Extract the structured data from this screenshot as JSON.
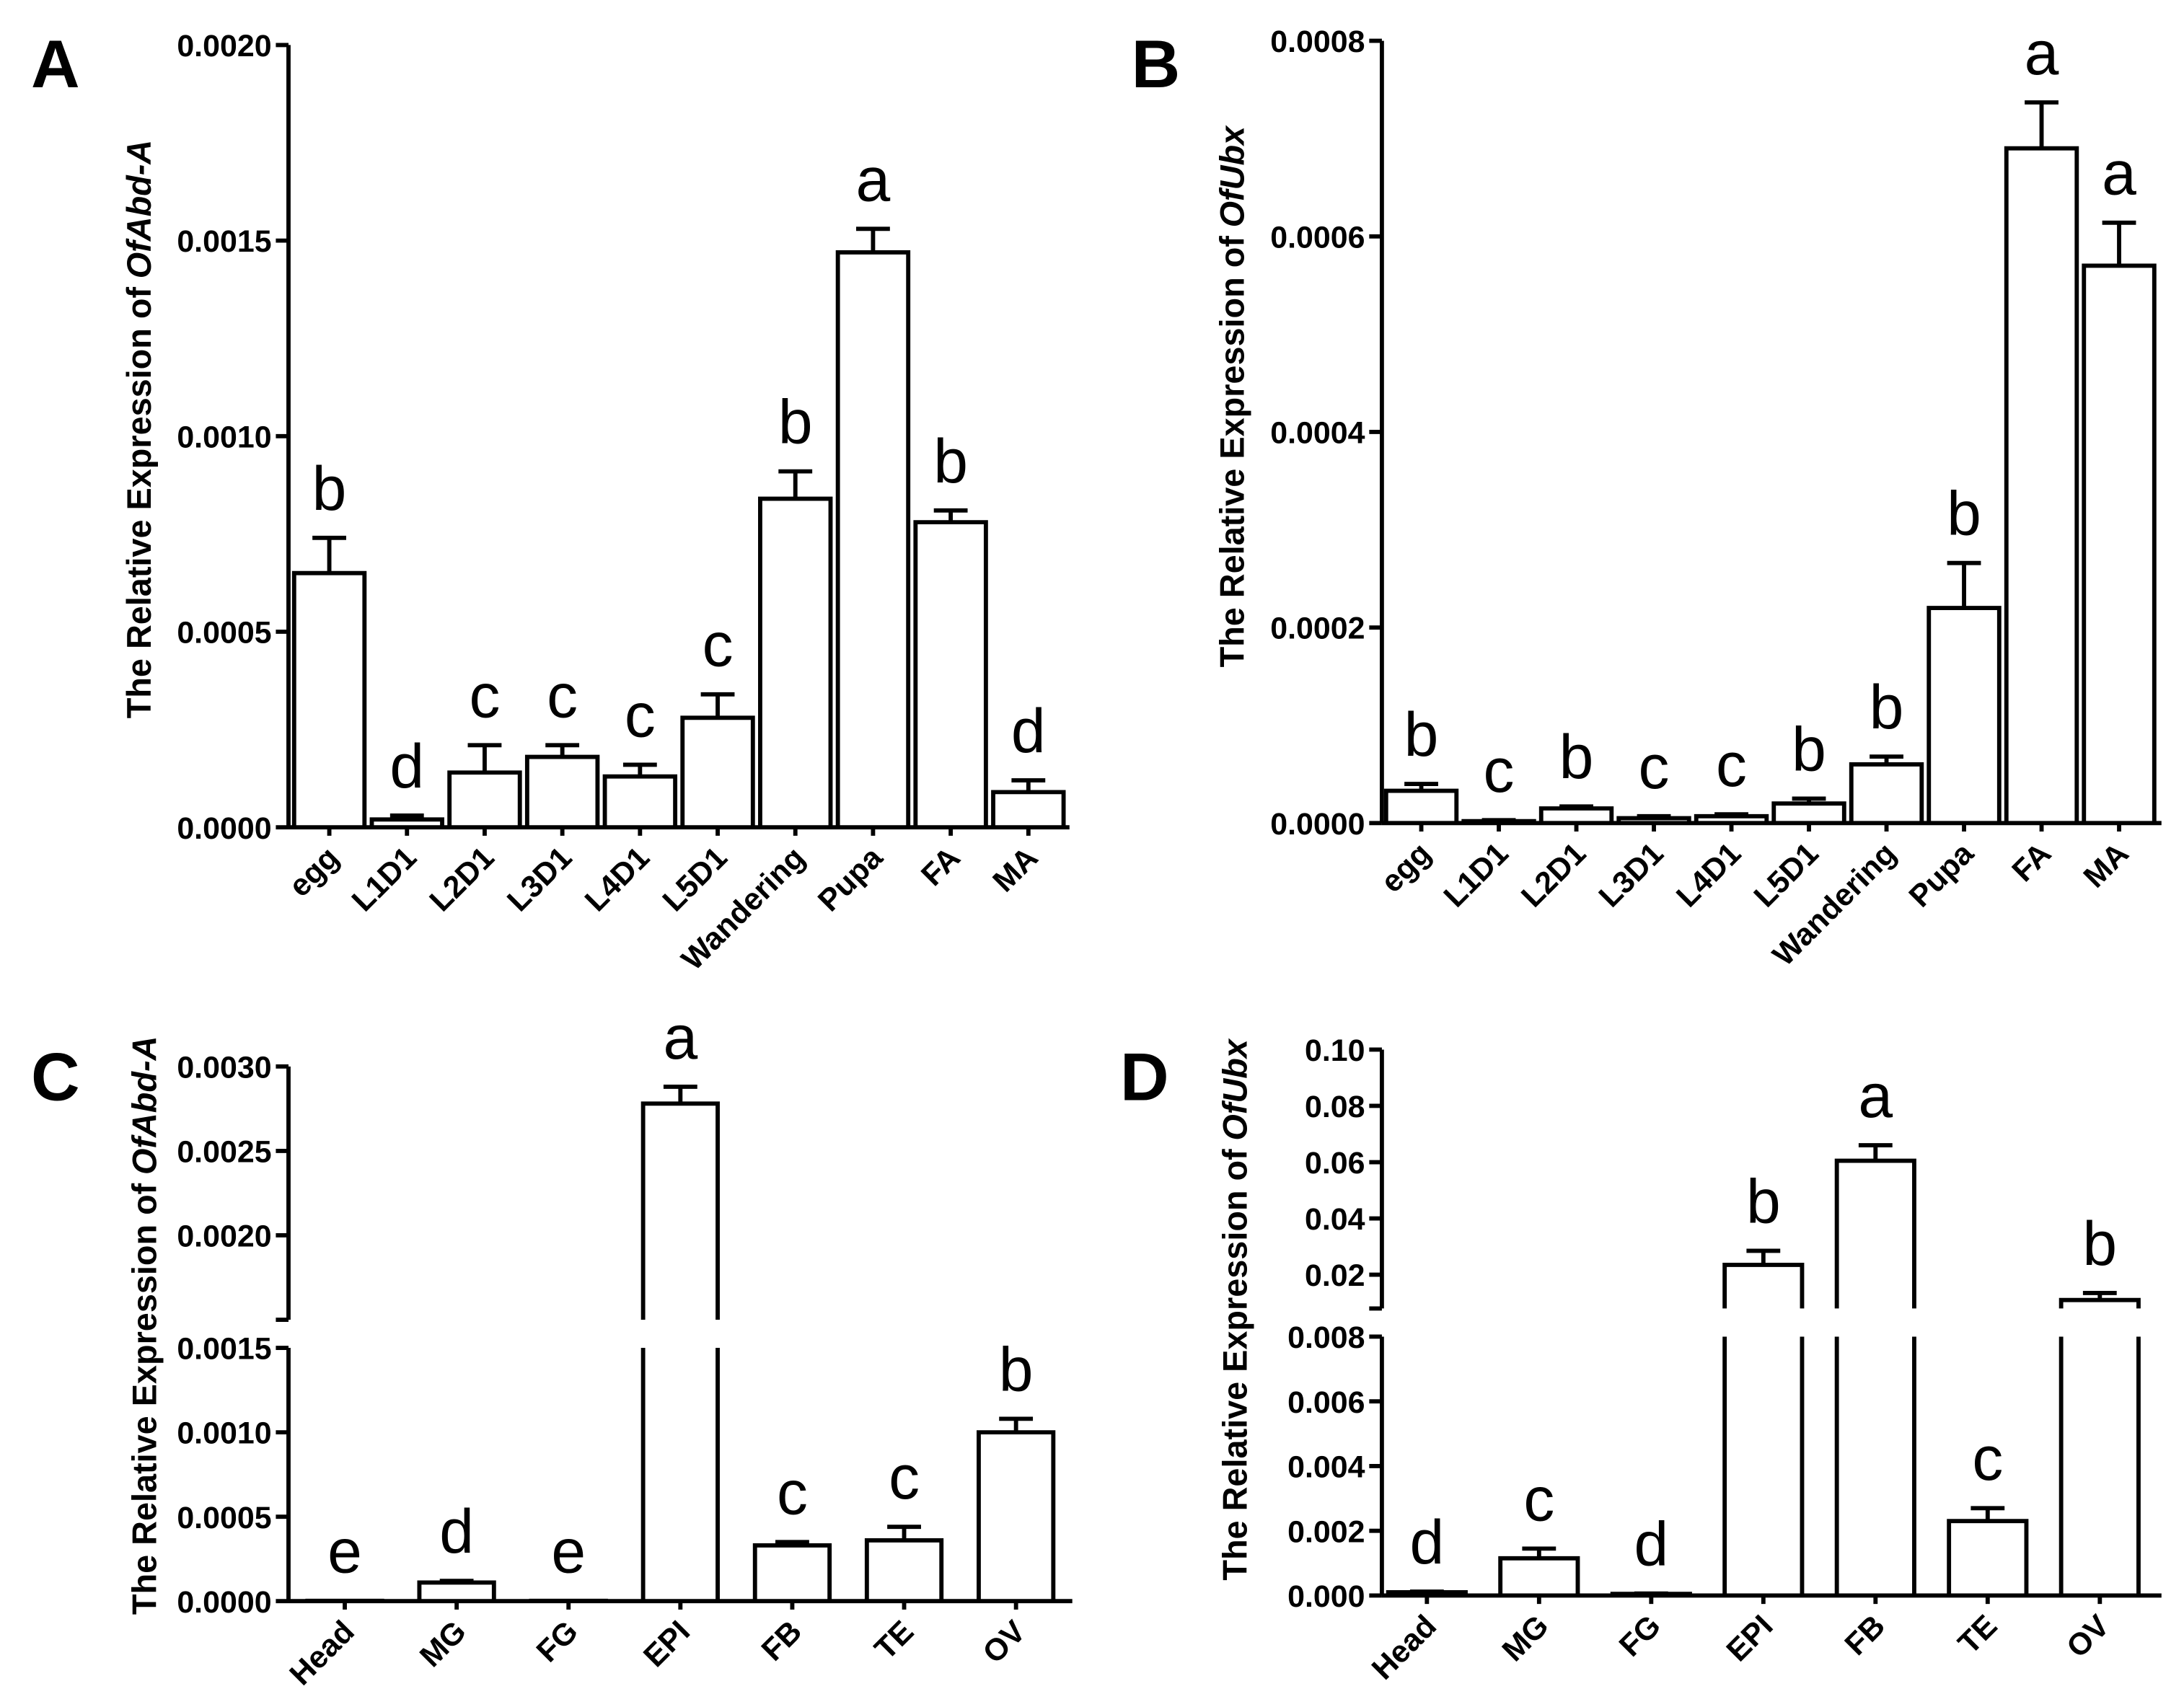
{
  "style": {
    "background": "#ffffff",
    "bar_fill": "#ffffff",
    "stroke": "#000000"
  },
  "chart_data": [
    {
      "panel": "A",
      "type": "bar",
      "ylabel_prefix": "The Relative Expression of",
      "ylabel_gene": "OfAbd-A",
      "categories": [
        "egg",
        "L1D1",
        "L2D1",
        "L3D1",
        "L4D1",
        "L5D1",
        "Wandering",
        "Pupa",
        "FA",
        "MA"
      ],
      "values": [
        0.00065,
        2e-05,
        0.00014,
        0.00018,
        0.00013,
        0.00028,
        0.00084,
        0.00147,
        0.00078,
        9e-05
      ],
      "errors": [
        9e-05,
        1e-05,
        7e-05,
        3e-05,
        3e-05,
        6e-05,
        7e-05,
        6e-05,
        3e-05,
        3e-05
      ],
      "letters": [
        "b",
        "d",
        "c",
        "c",
        "c",
        "c",
        "b",
        "a",
        "b",
        "d"
      ],
      "ylim": [
        0,
        0.002
      ],
      "yticks": [
        {
          "value": 0,
          "label": "0.0000"
        },
        {
          "value": 0.0005,
          "label": "0.0005"
        },
        {
          "value": 0.001,
          "label": "0.0010"
        },
        {
          "value": 0.0015,
          "label": "0.0015"
        },
        {
          "value": 0.002,
          "label": "0.0020"
        }
      ]
    },
    {
      "panel": "B",
      "type": "bar",
      "ylabel_prefix": "The Relative Expression of",
      "ylabel_gene": "OfUbx",
      "categories": [
        "egg",
        "L1D1",
        "L2D1",
        "L3D1",
        "L4D1",
        "L5D1",
        "Wandering",
        "Pupa",
        "FA",
        "MA"
      ],
      "values": [
        3.3e-05,
        2e-06,
        1.5e-05,
        5e-06,
        7e-06,
        2e-05,
        6e-05,
        0.00022,
        0.00069,
        0.00057
      ],
      "errors": [
        7e-06,
        1e-06,
        2e-06,
        2e-06,
        2e-06,
        5e-06,
        8e-06,
        4.6e-05,
        4.7e-05,
        4.4e-05
      ],
      "letters": [
        "b",
        "c",
        "b",
        "c",
        "c",
        "b",
        "b",
        "b",
        "a",
        "a"
      ],
      "ylim": [
        0,
        0.0008
      ],
      "yticks": [
        {
          "value": 0,
          "label": "0.0000"
        },
        {
          "value": 0.0002,
          "label": "0.0002"
        },
        {
          "value": 0.0004,
          "label": "0.0004"
        },
        {
          "value": 0.0006,
          "label": "0.0006"
        },
        {
          "value": 0.0008,
          "label": "0.0008"
        }
      ]
    },
    {
      "panel": "C",
      "type": "bar",
      "ylabel_prefix": "The Relative Expression of",
      "ylabel_gene": "OfAbd-A",
      "categories": [
        "Head",
        "MG",
        "FG",
        "EPI",
        "FB",
        "TE",
        "OV"
      ],
      "values": [
        2e-06,
        0.00011,
        2e-06,
        0.00278,
        0.00033,
        0.00036,
        0.001
      ],
      "errors": [
        0,
        1e-05,
        0,
        0.0001,
        2e-05,
        8e-05,
        8e-05
      ],
      "letters": [
        "e",
        "d",
        "e",
        "a",
        "c",
        "c",
        "b"
      ],
      "ybreak": {
        "lower": {
          "range": [
            0,
            0.0015
          ],
          "ticks": [
            {
              "value": 0,
              "label": "0.0000"
            },
            {
              "value": 0.0005,
              "label": "0.0005"
            },
            {
              "value": 0.001,
              "label": "0.0010"
            },
            {
              "value": 0.0015,
              "label": "0.0015"
            }
          ]
        },
        "upper": {
          "range": [
            0.0015,
            0.003
          ],
          "ticks": [
            {
              "value": 0.002,
              "label": "0.0020"
            },
            {
              "value": 0.0025,
              "label": "0.0025"
            },
            {
              "value": 0.003,
              "label": "0.0030"
            }
          ]
        }
      }
    },
    {
      "panel": "D",
      "type": "bar",
      "ylabel_prefix": "The Relative Expression of",
      "ylabel_gene": "OfUbx",
      "categories": [
        "Head",
        "MG",
        "FG",
        "EPI",
        "FB",
        "TE",
        "OV"
      ],
      "values": [
        0.0001,
        0.00115,
        5e-05,
        0.0235,
        0.0605,
        0.0023,
        0.011
      ],
      "errors": [
        2e-05,
        0.0003,
        1e-05,
        0.005,
        0.0055,
        0.0004,
        0.0025
      ],
      "letters": [
        "d",
        "c",
        "d",
        "b",
        "a",
        "c",
        "b"
      ],
      "ybreak": {
        "lower": {
          "range": [
            0,
            0.008
          ],
          "ticks": [
            {
              "value": 0,
              "label": "0.000"
            },
            {
              "value": 0.002,
              "label": "0.002"
            },
            {
              "value": 0.004,
              "label": "0.004"
            },
            {
              "value": 0.006,
              "label": "0.006"
            },
            {
              "value": 0.008,
              "label": "0.008"
            }
          ]
        },
        "upper": {
          "range": [
            0.008,
            0.1
          ],
          "ticks": [
            {
              "value": 0.02,
              "label": "0.02"
            },
            {
              "value": 0.04,
              "label": "0.04"
            },
            {
              "value": 0.06,
              "label": "0.06"
            },
            {
              "value": 0.08,
              "label": "0.08"
            },
            {
              "value": 0.1,
              "label": "0.10"
            }
          ]
        }
      }
    }
  ]
}
